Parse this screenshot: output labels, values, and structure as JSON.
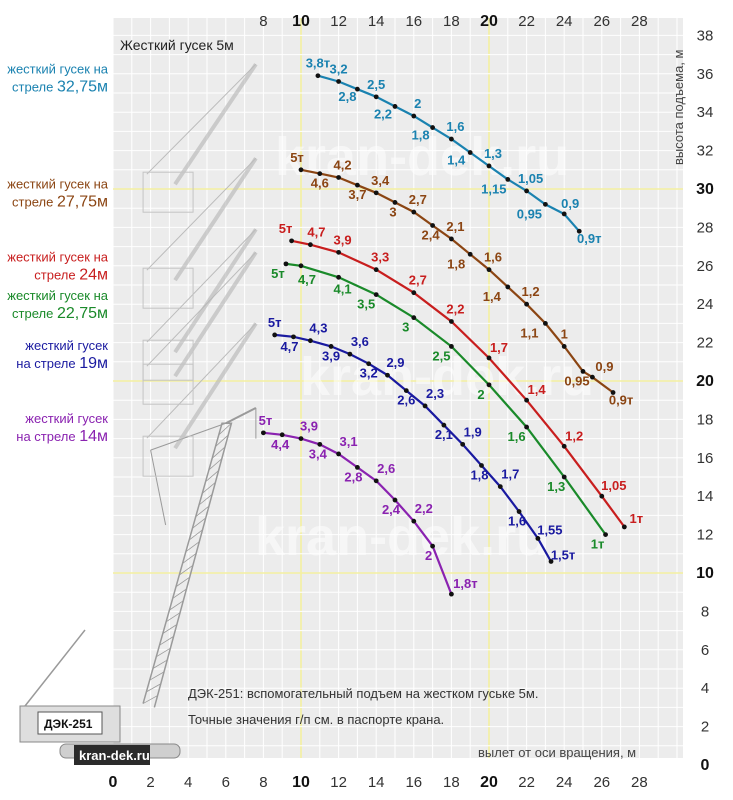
{
  "colors": {
    "plot_bg": "#ececec",
    "grid": "#ffffff",
    "grid_major": "#f4f0a0",
    "crane": "#9a9a9a"
  },
  "top_note": "Жесткий гусек 5м",
  "axis_title_y": "высота подъема, м",
  "axis_title_x": "вылет от оси вращения, м",
  "notes": [
    "ДЭК-251: вспомогательный подъем на жестком гуське 5м.",
    "Точные значения г/п см. в паспорте крана."
  ],
  "crane_name": "ДЭК-251",
  "website": "kran-dek.ru",
  "watermark": "kran-dek.ru",
  "chart_data": {
    "type": "line",
    "xlabel": "вылет от оси вращения, м",
    "ylabel": "высота подъема, м",
    "xlim": [
      0,
      30
    ],
    "ylim": [
      0,
      38
    ],
    "grid": true,
    "x_ticks_bottom": [
      "0",
      "2",
      "4",
      "6",
      "8",
      "10",
      "12",
      "14",
      "16",
      "18",
      "20",
      "22",
      "24",
      "26",
      "28"
    ],
    "x_ticks_top": [
      "8",
      "10",
      "12",
      "14",
      "16",
      "18",
      "20",
      "22",
      "24",
      "26",
      "28"
    ],
    "y_ticks": [
      "0",
      "2",
      "4",
      "6",
      "8",
      "10",
      "12",
      "14",
      "16",
      "18",
      "20",
      "22",
      "24",
      "26",
      "28",
      "30",
      "32",
      "34",
      "36",
      "38"
    ],
    "bold_x_ticks": [
      "0",
      "10",
      "20"
    ],
    "bold_y_ticks": [
      "0",
      "10",
      "20",
      "30"
    ],
    "series": [
      {
        "name_line1": "жесткий гусек на",
        "name_line2_text": "стреле ",
        "name_line2_value": "32,75м",
        "color": "#1a82b0",
        "points": [
          {
            "x": 10.9,
            "y": 35.9,
            "label": "3,8т"
          },
          {
            "x": 12.0,
            "y": 35.6,
            "label": "3,2"
          },
          {
            "x": 13.0,
            "y": 35.2,
            "label": "2,8"
          },
          {
            "x": 14.0,
            "y": 34.8,
            "label": "2,5"
          },
          {
            "x": 15.0,
            "y": 34.3,
            "label": "2,2"
          },
          {
            "x": 16.0,
            "y": 33.8,
            "label": "2"
          },
          {
            "x": 17.0,
            "y": 33.2,
            "label": "1,8"
          },
          {
            "x": 18.0,
            "y": 32.6,
            "label": "1,6"
          },
          {
            "x": 19.0,
            "y": 31.9,
            "label": "1,4"
          },
          {
            "x": 20.0,
            "y": 31.2,
            "label": "1,3"
          },
          {
            "x": 21.0,
            "y": 30.5,
            "label": "1,15"
          },
          {
            "x": 22.0,
            "y": 29.9,
            "label": "1,05"
          },
          {
            "x": 23.0,
            "y": 29.2,
            "label": "0,95"
          },
          {
            "x": 24.0,
            "y": 28.7,
            "label": "0,9"
          },
          {
            "x": 24.8,
            "y": 27.8,
            "label": "0,9т"
          }
        ]
      },
      {
        "name_line1": "жесткий гусек на",
        "name_line2_text": "стреле ",
        "name_line2_value": "27,75м",
        "color": "#8b4513",
        "points": [
          {
            "x": 10.0,
            "y": 31.0,
            "label": "5т"
          },
          {
            "x": 11.0,
            "y": 30.8,
            "label": "4,6"
          },
          {
            "x": 12.0,
            "y": 30.6,
            "label": "4,2"
          },
          {
            "x": 13.0,
            "y": 30.2,
            "label": "3,7"
          },
          {
            "x": 14.0,
            "y": 29.8,
            "label": "3,4"
          },
          {
            "x": 15.0,
            "y": 29.3,
            "label": "3"
          },
          {
            "x": 16.0,
            "y": 28.8,
            "label": "2,7"
          },
          {
            "x": 17.0,
            "y": 28.1,
            "label": "2,4"
          },
          {
            "x": 18.0,
            "y": 27.4,
            "label": "2,1"
          },
          {
            "x": 19.0,
            "y": 26.6,
            "label": "1,8"
          },
          {
            "x": 20.0,
            "y": 25.8,
            "label": "1,6"
          },
          {
            "x": 21.0,
            "y": 24.9,
            "label": "1,4"
          },
          {
            "x": 22.0,
            "y": 24.0,
            "label": "1,2"
          },
          {
            "x": 23.0,
            "y": 23.0,
            "label": "1,1"
          },
          {
            "x": 24.0,
            "y": 21.8,
            "label": "1"
          },
          {
            "x": 25.0,
            "y": 20.5,
            "label": "0,95"
          },
          {
            "x": 25.5,
            "y": 20.2,
            "label": "0,9"
          },
          {
            "x": 26.6,
            "y": 19.4,
            "label": "0,9т"
          }
        ]
      },
      {
        "name_line1": "жесткий гусек на",
        "name_line2_text": "стреле ",
        "name_line2_value": "24м",
        "color": "#c81e1e",
        "points": [
          {
            "x": 9.5,
            "y": 27.3,
            "label": "5т"
          },
          {
            "x": 10.5,
            "y": 27.1,
            "label": "4,7"
          },
          {
            "x": 12.0,
            "y": 26.7,
            "label": "3,9"
          },
          {
            "x": 14.0,
            "y": 25.8,
            "label": "3,3"
          },
          {
            "x": 16.0,
            "y": 24.6,
            "label": "2,7"
          },
          {
            "x": 18.0,
            "y": 23.1,
            "label": "2,2"
          },
          {
            "x": 20.0,
            "y": 21.2,
            "label": "1,7"
          },
          {
            "x": 22.0,
            "y": 19.0,
            "label": "1,4"
          },
          {
            "x": 24.0,
            "y": 16.6,
            "label": "1,2"
          },
          {
            "x": 26.0,
            "y": 14.0,
            "label": "1,05"
          },
          {
            "x": 27.2,
            "y": 12.4,
            "label": "1т"
          }
        ]
      },
      {
        "name_line1": "жесткий гусек на",
        "name_line2_text": "стреле ",
        "name_line2_value": "22,75м",
        "color": "#1a8a2a",
        "points": [
          {
            "x": 9.2,
            "y": 26.1,
            "label": "5т"
          },
          {
            "x": 10.0,
            "y": 26.0,
            "label": "4,7"
          },
          {
            "x": 12.0,
            "y": 25.4,
            "label": "4,1"
          },
          {
            "x": 14.0,
            "y": 24.5,
            "label": "3,5"
          },
          {
            "x": 16.0,
            "y": 23.3,
            "label": "3"
          },
          {
            "x": 18.0,
            "y": 21.8,
            "label": "2,5"
          },
          {
            "x": 20.0,
            "y": 19.8,
            "label": "2"
          },
          {
            "x": 22.0,
            "y": 17.6,
            "label": "1,6"
          },
          {
            "x": 24.0,
            "y": 15.0,
            "label": "1,3"
          },
          {
            "x": 26.2,
            "y": 12.0,
            "label": "1т"
          }
        ]
      },
      {
        "name_line1": "жесткий гусек",
        "name_line2_text": "на стреле ",
        "name_line2_value": "19м",
        "color": "#1a1aa0",
        "points": [
          {
            "x": 8.6,
            "y": 22.4,
            "label": "5т"
          },
          {
            "x": 9.6,
            "y": 22.3,
            "label": "4,7"
          },
          {
            "x": 10.5,
            "y": 22.1,
            "label": "4,3"
          },
          {
            "x": 11.6,
            "y": 21.8,
            "label": "3,9"
          },
          {
            "x": 12.6,
            "y": 21.4,
            "label": "3,6"
          },
          {
            "x": 13.6,
            "y": 20.9,
            "label": "3,2"
          },
          {
            "x": 14.6,
            "y": 20.3,
            "label": "2,9"
          },
          {
            "x": 15.6,
            "y": 19.5,
            "label": "2,6"
          },
          {
            "x": 16.6,
            "y": 18.7,
            "label": "2,3"
          },
          {
            "x": 17.6,
            "y": 17.7,
            "label": "2,1"
          },
          {
            "x": 18.6,
            "y": 16.7,
            "label": "1,9"
          },
          {
            "x": 19.6,
            "y": 15.6,
            "label": "1,8"
          },
          {
            "x": 20.6,
            "y": 14.5,
            "label": "1,7"
          },
          {
            "x": 21.6,
            "y": 13.2,
            "label": "1,6"
          },
          {
            "x": 22.6,
            "y": 11.8,
            "label": "1,55"
          },
          {
            "x": 23.3,
            "y": 10.6,
            "label": "1,5т"
          }
        ]
      },
      {
        "name_line1": "жесткий гусек",
        "name_line2_text": "на стреле ",
        "name_line2_value": "14м",
        "color": "#8a22b0",
        "points": [
          {
            "x": 8.0,
            "y": 17.3,
            "label": "5т"
          },
          {
            "x": 9.0,
            "y": 17.2,
            "label": "4,4"
          },
          {
            "x": 10.0,
            "y": 17.0,
            "label": "3,9"
          },
          {
            "x": 11.0,
            "y": 16.7,
            "label": "3,4"
          },
          {
            "x": 12.0,
            "y": 16.2,
            "label": "3,1"
          },
          {
            "x": 13.0,
            "y": 15.5,
            "label": "2,8"
          },
          {
            "x": 14.0,
            "y": 14.8,
            "label": "2,6"
          },
          {
            "x": 15.0,
            "y": 13.8,
            "label": "2,4"
          },
          {
            "x": 16.0,
            "y": 12.7,
            "label": "2,2"
          },
          {
            "x": 17.0,
            "y": 11.4,
            "label": "2"
          },
          {
            "x": 18.0,
            "y": 8.9,
            "label": "1,8т"
          }
        ]
      }
    ]
  }
}
